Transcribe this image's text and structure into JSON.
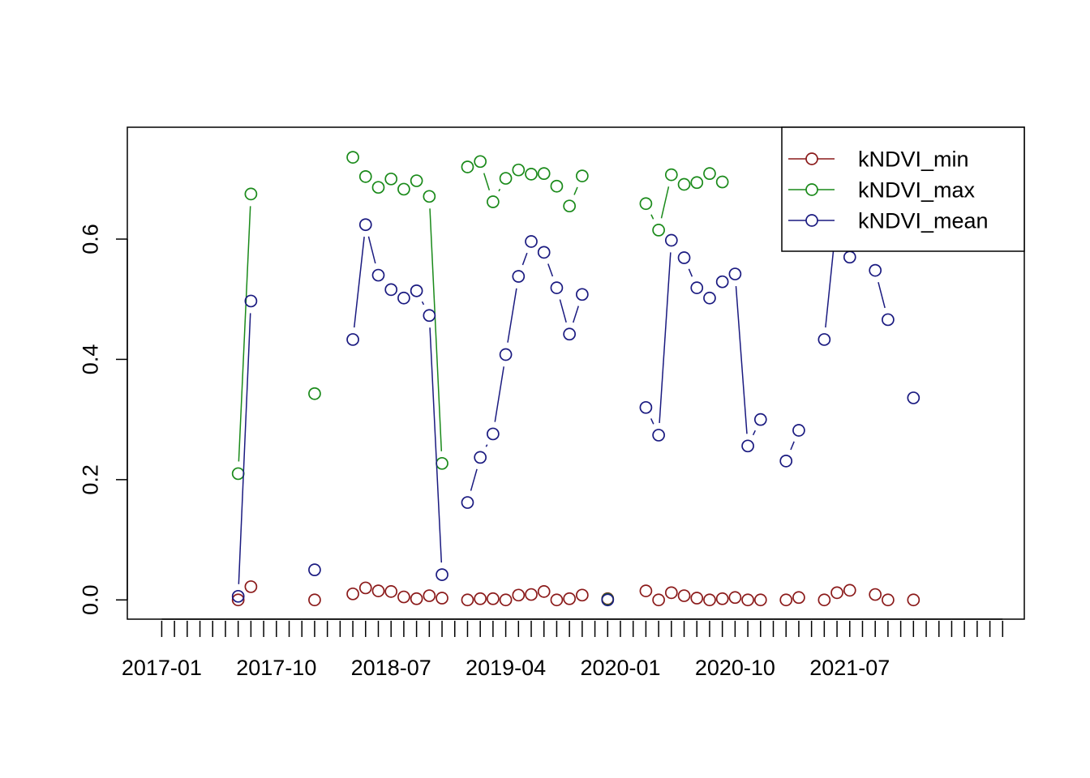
{
  "chart_data": {
    "type": "line",
    "title": "",
    "xlabel": "",
    "ylabel": "",
    "ylim": [
      -0.032,
      0.786
    ],
    "yticks": [
      0.0,
      0.2,
      0.4,
      0.6
    ],
    "ytick_labels": [
      "0.0",
      "0.2",
      "0.4",
      "0.6"
    ],
    "xlim": [
      -2.7,
      67.7
    ],
    "xticks": [
      0,
      1,
      2,
      3,
      4,
      5,
      6,
      7,
      8,
      9,
      10,
      11,
      12,
      13,
      14,
      15,
      16,
      17,
      18,
      19,
      20,
      21,
      22,
      23,
      24,
      25,
      26,
      27,
      28,
      29,
      30,
      31,
      32,
      33,
      34,
      35,
      36,
      37,
      38,
      39,
      40,
      41,
      42,
      43,
      44,
      45,
      46,
      47,
      48,
      49,
      50,
      51,
      52,
      53,
      54,
      55,
      56,
      57,
      58,
      59,
      60,
      61,
      62,
      63,
      64,
      65,
      66
    ],
    "xtick_labels": [
      {
        "x": 0,
        "label": "2017-01"
      },
      {
        "x": 9,
        "label": "2017-10"
      },
      {
        "x": 18,
        "label": "2018-07"
      },
      {
        "x": 27,
        "label": "2019-04"
      },
      {
        "x": 36,
        "label": "2020-01"
      },
      {
        "x": 45,
        "label": "2020-10"
      },
      {
        "x": 54,
        "label": "2021-07"
      }
    ],
    "legend": {
      "position": "top-right",
      "entries": [
        "kNDVI_min",
        "kNDVI_max",
        "kNDVI_mean"
      ]
    },
    "series": [
      {
        "name": "kNDVI_min",
        "color": "#8B1A1A",
        "points": [
          [
            6,
            0.0
          ],
          [
            7,
            0.022
          ],
          [
            12,
            0.0
          ],
          [
            15,
            0.01
          ],
          [
            16,
            0.02
          ],
          [
            17,
            0.015
          ],
          [
            18,
            0.014
          ],
          [
            19,
            0.005
          ],
          [
            20,
            0.002
          ],
          [
            21,
            0.007
          ],
          [
            22,
            0.003
          ],
          [
            24,
            0.0
          ],
          [
            25,
            0.002
          ],
          [
            26,
            0.002
          ],
          [
            27,
            0.0
          ],
          [
            28,
            0.008
          ],
          [
            29,
            0.009
          ],
          [
            30,
            0.014
          ],
          [
            31,
            0.0
          ],
          [
            32,
            0.002
          ],
          [
            33,
            0.008
          ],
          [
            35,
            0.002
          ],
          [
            38,
            0.015
          ],
          [
            39,
            0.0
          ],
          [
            40,
            0.012
          ],
          [
            41,
            0.007
          ],
          [
            42,
            0.003
          ],
          [
            43,
            0.0
          ],
          [
            44,
            0.002
          ],
          [
            45,
            0.004
          ],
          [
            46,
            0.0
          ],
          [
            47,
            0.0
          ],
          [
            49,
            0.0
          ],
          [
            50,
            0.004
          ],
          [
            52,
            0.0
          ],
          [
            53,
            0.012
          ],
          [
            54,
            0.016
          ],
          [
            56,
            0.009
          ],
          [
            57,
            0.0
          ],
          [
            59,
            0.0
          ]
        ]
      },
      {
        "name": "kNDVI_max",
        "color": "#1A8A1A",
        "points": [
          [
            6,
            0.21
          ],
          [
            7,
            0.675
          ],
          [
            12,
            0.343
          ],
          [
            15,
            0.736
          ],
          [
            16,
            0.704
          ],
          [
            17,
            0.686
          ],
          [
            18,
            0.7
          ],
          [
            19,
            0.683
          ],
          [
            20,
            0.697
          ],
          [
            21,
            0.671
          ],
          [
            22,
            0.227
          ],
          [
            24,
            0.72
          ],
          [
            25,
            0.729
          ],
          [
            26,
            0.662
          ],
          [
            27,
            0.701
          ],
          [
            28,
            0.715
          ],
          [
            29,
            0.708
          ],
          [
            30,
            0.709
          ],
          [
            31,
            0.688
          ],
          [
            32,
            0.655
          ],
          [
            33,
            0.705
          ],
          [
            35,
            0.001
          ],
          [
            38,
            0.659
          ],
          [
            39,
            0.615
          ],
          [
            40,
            0.707
          ],
          [
            41,
            0.691
          ],
          [
            42,
            0.694
          ],
          [
            43,
            0.709
          ],
          [
            44,
            0.695
          ]
        ]
      },
      {
        "name": "kNDVI_mean",
        "color": "#1A1A80",
        "points": [
          [
            6,
            0.006
          ],
          [
            7,
            0.497
          ],
          [
            12,
            0.05
          ],
          [
            15,
            0.433
          ],
          [
            16,
            0.624
          ],
          [
            17,
            0.54
          ],
          [
            18,
            0.516
          ],
          [
            19,
            0.502
          ],
          [
            20,
            0.514
          ],
          [
            21,
            0.473
          ],
          [
            22,
            0.042
          ],
          [
            24,
            0.162
          ],
          [
            25,
            0.237
          ],
          [
            26,
            0.276
          ],
          [
            27,
            0.408
          ],
          [
            28,
            0.538
          ],
          [
            29,
            0.596
          ],
          [
            30,
            0.578
          ],
          [
            31,
            0.519
          ],
          [
            32,
            0.442
          ],
          [
            33,
            0.508
          ],
          [
            35,
            0.0
          ],
          [
            38,
            0.32
          ],
          [
            39,
            0.274
          ],
          [
            40,
            0.598
          ],
          [
            41,
            0.569
          ],
          [
            42,
            0.519
          ],
          [
            43,
            0.502
          ],
          [
            44,
            0.529
          ],
          [
            45,
            0.542
          ],
          [
            46,
            0.256
          ],
          [
            47,
            0.3
          ],
          [
            49,
            0.231
          ],
          [
            50,
            0.282
          ],
          [
            52,
            0.433
          ],
          [
            53,
            0.64
          ],
          [
            54,
            0.57
          ],
          [
            56,
            0.548
          ],
          [
            57,
            0.466
          ],
          [
            59,
            0.336
          ]
        ]
      }
    ]
  }
}
